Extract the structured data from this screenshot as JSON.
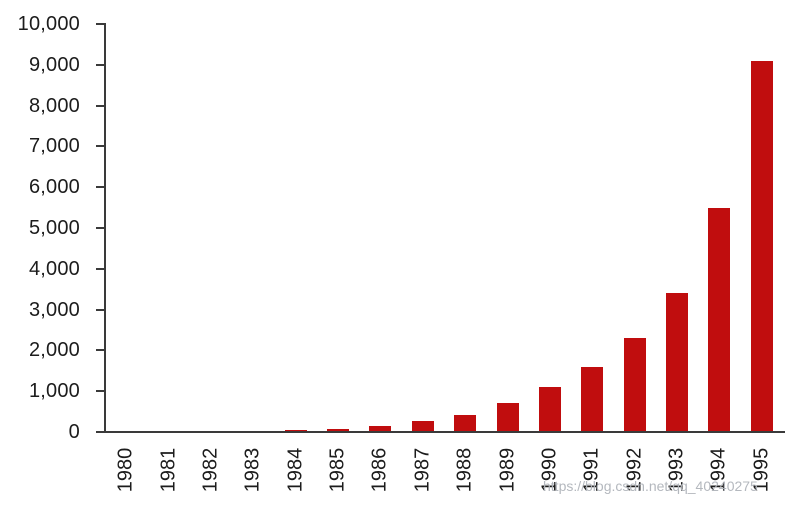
{
  "watermark": {
    "text": "https://blog.csdn.net/qq_40240275"
  },
  "chart_data": {
    "type": "bar",
    "title": "",
    "xlabel": "",
    "ylabel": "",
    "categories": [
      "1980",
      "1981",
      "1982",
      "1983",
      "1984",
      "1985",
      "1986",
      "1987",
      "1988",
      "1989",
      "1990",
      "1991",
      "1992",
      "1993",
      "1994",
      "1995"
    ],
    "values": [
      0,
      0,
      0,
      0,
      60,
      85,
      160,
      270,
      420,
      720,
      1100,
      1600,
      2300,
      3400,
      5500,
      9100
    ],
    "ylim": [
      0,
      10000
    ],
    "ytick_interval": 1000,
    "ytick_labels": [
      "0",
      "1,000",
      "2,000",
      "3,000",
      "4,000",
      "5,000",
      "6,000",
      "7,000",
      "8,000",
      "9,000",
      "10,000"
    ],
    "grid": "off",
    "legend": "none",
    "bar_color": "#c00d0e",
    "axis_color": "#3a3a3a",
    "tick_label_color": "#1c1c1c",
    "watermark_color": "#b0b4bb",
    "background_color": "#ffffff"
  }
}
